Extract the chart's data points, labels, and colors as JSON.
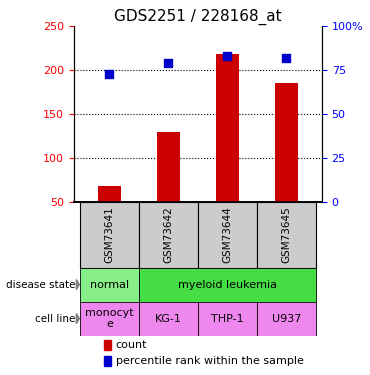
{
  "title": "GDS2251 / 228168_at",
  "samples": [
    "GSM73641",
    "GSM73642",
    "GSM73644",
    "GSM73645"
  ],
  "counts": [
    68,
    130,
    218,
    185
  ],
  "percentiles": [
    73,
    79,
    83,
    82
  ],
  "ylim_left": [
    50,
    250
  ],
  "ylim_right": [
    0,
    100
  ],
  "yticks_left": [
    50,
    100,
    150,
    200,
    250
  ],
  "yticks_right": [
    0,
    25,
    50,
    75,
    100
  ],
  "bar_color": "#cc0000",
  "dot_color": "#0000cc",
  "disease_normal_color": "#88ee88",
  "disease_leukemia_color": "#44dd44",
  "cell_line_color": "#ee88ee",
  "sample_box_color": "#cccccc",
  "row_labels": [
    "disease state",
    "cell line"
  ],
  "cell_line_labels": [
    "monocyt\ne",
    "KG-1",
    "THP-1",
    "U937"
  ],
  "legend_count_color": "#cc0000",
  "legend_pct_color": "#0000cc",
  "legend_count_label": "count",
  "legend_pct_label": "percentile rank within the sample"
}
